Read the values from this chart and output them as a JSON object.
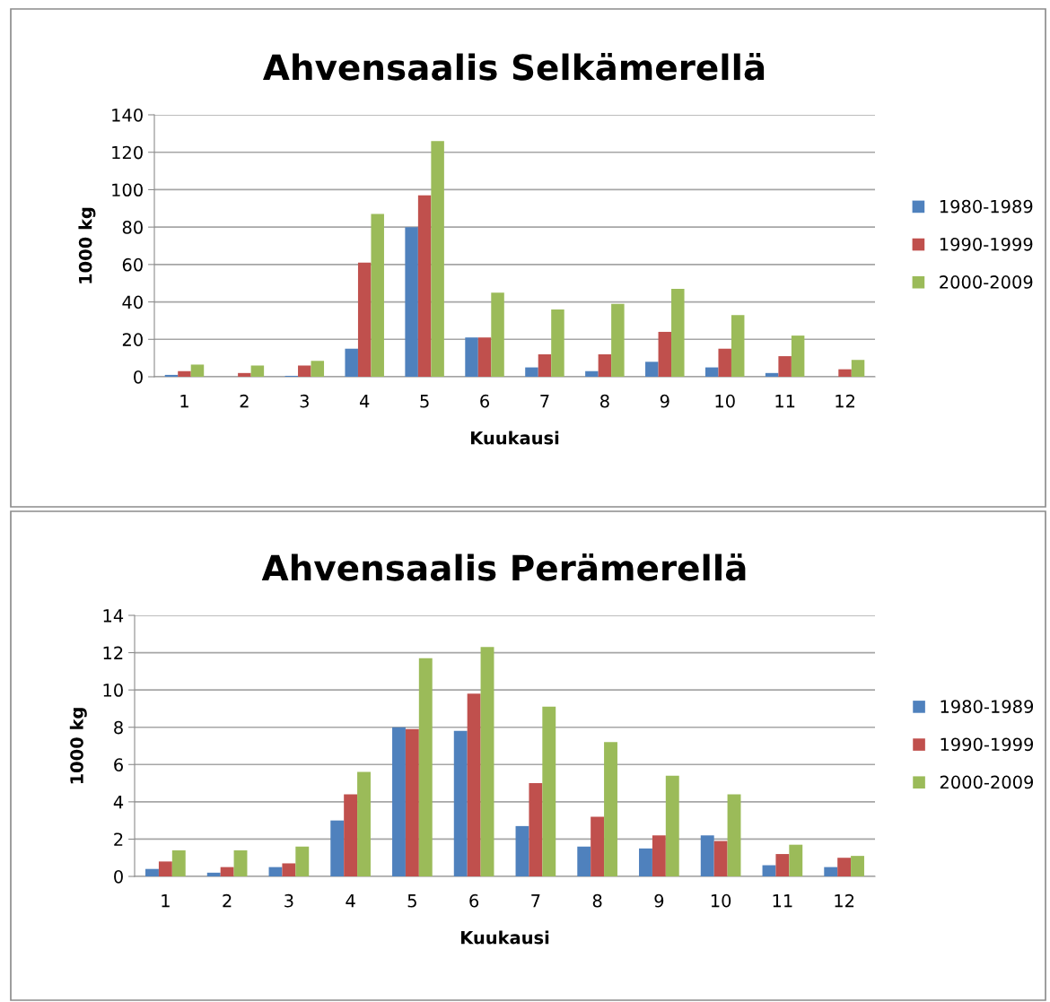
{
  "chart_data": [
    {
      "type": "bar",
      "title": "Ahvensaalis Selkämerellä",
      "xlabel": "Kuukausi",
      "ylabel": "1000 kg",
      "categories": [
        "1",
        "2",
        "3",
        "4",
        "5",
        "6",
        "7",
        "8",
        "9",
        "10",
        "11",
        "12"
      ],
      "series": [
        {
          "name": "1980-1989",
          "color": "#4f81bd",
          "values": [
            1,
            0,
            0.5,
            15,
            80,
            21,
            5,
            3,
            8,
            5,
            2,
            0
          ]
        },
        {
          "name": "1990-1999",
          "color": "#c0504d",
          "values": [
            3,
            2,
            6,
            61,
            97,
            21,
            12,
            12,
            24,
            15,
            11,
            4
          ]
        },
        {
          "name": "2000-2009",
          "color": "#9bbb59",
          "values": [
            6.5,
            6,
            8.5,
            87,
            126,
            45,
            36,
            39,
            47,
            33,
            22,
            9
          ]
        }
      ],
      "ylim": [
        0,
        140
      ],
      "yticks": [
        0,
        20,
        40,
        60,
        80,
        100,
        120,
        140
      ],
      "grid": "y",
      "legend": "right"
    },
    {
      "type": "bar",
      "title": "Ahvensaalis Perämerellä",
      "xlabel": "Kuukausi",
      "ylabel": "1000 kg",
      "categories": [
        "1",
        "2",
        "3",
        "4",
        "5",
        "6",
        "7",
        "8",
        "9",
        "10",
        "11",
        "12"
      ],
      "series": [
        {
          "name": "1980-1989",
          "color": "#4f81bd",
          "values": [
            0.4,
            0.2,
            0.5,
            3,
            8,
            7.8,
            2.7,
            1.6,
            1.5,
            2.2,
            0.6,
            0.5
          ]
        },
        {
          "name": "1990-1999",
          "color": "#c0504d",
          "values": [
            0.8,
            0.5,
            0.7,
            4.4,
            7.9,
            9.8,
            5,
            3.2,
            2.2,
            1.9,
            1.2,
            1
          ]
        },
        {
          "name": "2000-2009",
          "color": "#9bbb59",
          "values": [
            1.4,
            1.4,
            1.6,
            5.6,
            11.7,
            12.3,
            9.1,
            7.2,
            5.4,
            4.4,
            1.7,
            1.1
          ]
        }
      ],
      "ylim": [
        0,
        14
      ],
      "yticks": [
        0,
        2,
        4,
        6,
        8,
        10,
        12,
        14
      ],
      "grid": "y",
      "legend": "right"
    }
  ]
}
